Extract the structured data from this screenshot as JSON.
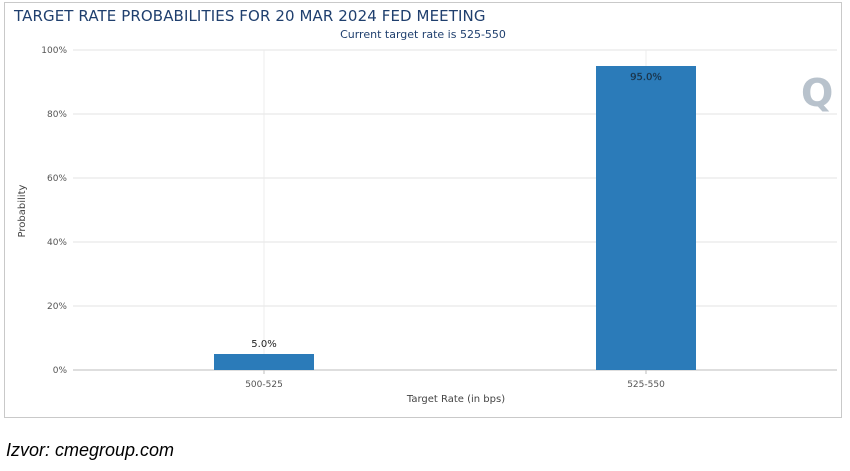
{
  "colors": {
    "bar": "#2b7bb9",
    "bar_label_inside": "#ffffff",
    "title": "#1f3f6e",
    "watermark": "#b8c2cc"
  },
  "watermark_text": "Q",
  "chart_data": {
    "type": "bar",
    "title": "TARGET RATE PROBABILITIES FOR 20 MAR 2024 FED MEETING",
    "subtitle": "Current target rate is 525-550",
    "xlabel": "Target Rate (in bps)",
    "ylabel": "Probability",
    "categories": [
      "500-525",
      "525-550"
    ],
    "values": [
      5.0,
      95.0
    ],
    "data_labels": [
      "5.0%",
      "95.0%"
    ],
    "ylim": [
      0,
      100
    ],
    "yticks": [
      0,
      20,
      40,
      60,
      80,
      100
    ],
    "ytick_labels": [
      "0%",
      "20%",
      "40%",
      "60%",
      "80%",
      "100%"
    ],
    "grid": true,
    "legend": "none"
  },
  "caption": "Izvor: cmegroup.com"
}
